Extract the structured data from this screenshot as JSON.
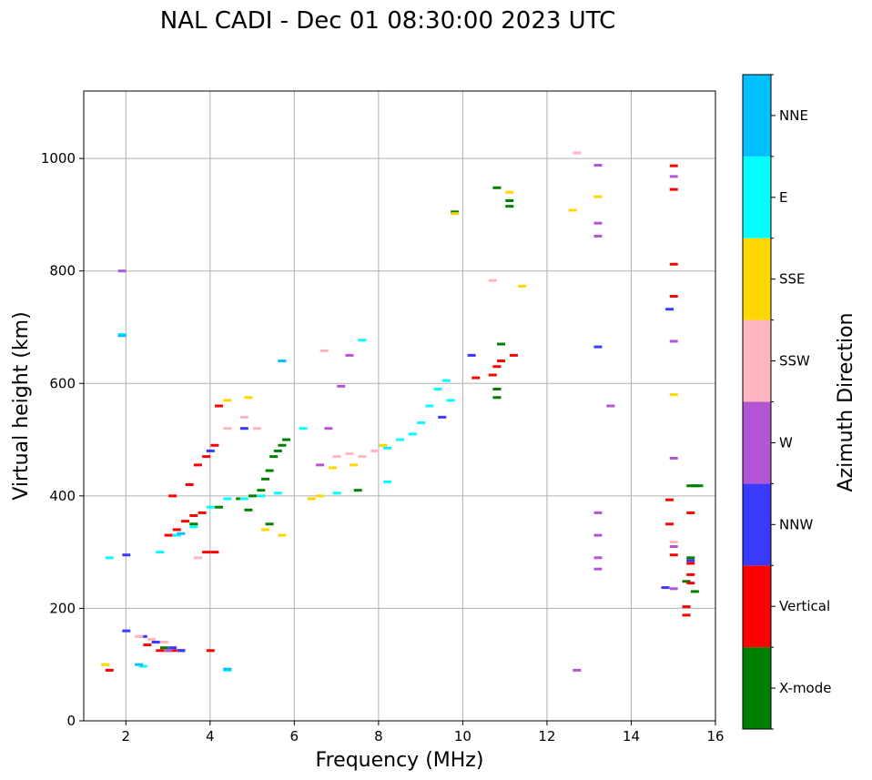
{
  "chart_data": {
    "type": "scatter",
    "title": "NAL CADI - Dec 01 08:30:00 2023 UTC",
    "xlabel": "Frequency (MHz)",
    "ylabel": "Virtual height (km)",
    "xlim": [
      1,
      16
    ],
    "ylim": [
      0,
      1120
    ],
    "xticks": [
      2,
      4,
      6,
      8,
      10,
      12,
      14,
      16
    ],
    "yticks": [
      0,
      200,
      400,
      600,
      800,
      1000
    ],
    "grid": true,
    "colorbar": {
      "label": "Azimuth Direction",
      "categories": [
        {
          "name": "X-mode",
          "color": "#008000"
        },
        {
          "name": "Vertical",
          "color": "#ff0000"
        },
        {
          "name": "NNW",
          "color": "#3a3aff"
        },
        {
          "name": "W",
          "color": "#b455d6"
        },
        {
          "name": "SSW",
          "color": "#ffb6c1"
        },
        {
          "name": "SSE",
          "color": "#ffd700"
        },
        {
          "name": "E",
          "color": "#00ffff"
        },
        {
          "name": "NNE",
          "color": "#00bfff"
        }
      ]
    },
    "series": [
      {
        "name": "X-mode",
        "points": [
          [
            2.9,
            130
          ],
          [
            3.6,
            350
          ],
          [
            4.2,
            380
          ],
          [
            4.7,
            395
          ],
          [
            4.9,
            375
          ],
          [
            5.0,
            400
          ],
          [
            5.2,
            410
          ],
          [
            5.3,
            430
          ],
          [
            5.4,
            445
          ],
          [
            5.5,
            470
          ],
          [
            5.6,
            480
          ],
          [
            5.7,
            490
          ],
          [
            5.8,
            500
          ],
          [
            5.4,
            350
          ],
          [
            7.5,
            410
          ],
          [
            9.8,
            905
          ],
          [
            10.8,
            590
          ],
          [
            10.8,
            575
          ],
          [
            10.9,
            670
          ],
          [
            11.1,
            925
          ],
          [
            11.1,
            915
          ],
          [
            15.4,
            418
          ],
          [
            15.5,
            418
          ],
          [
            15.6,
            418
          ],
          [
            15.3,
            248
          ],
          [
            15.5,
            230
          ],
          [
            15.4,
            290
          ],
          [
            10.8,
            948
          ]
        ]
      },
      {
        "name": "Vertical",
        "points": [
          [
            1.6,
            90
          ],
          [
            2.5,
            135
          ],
          [
            2.8,
            125
          ],
          [
            3.0,
            125
          ],
          [
            3.1,
            125
          ],
          [
            3.3,
            125
          ],
          [
            3.0,
            330
          ],
          [
            3.2,
            340
          ],
          [
            3.4,
            355
          ],
          [
            3.6,
            365
          ],
          [
            3.8,
            370
          ],
          [
            3.1,
            400
          ],
          [
            3.5,
            420
          ],
          [
            3.7,
            455
          ],
          [
            3.9,
            470
          ],
          [
            4.1,
            490
          ],
          [
            3.9,
            300
          ],
          [
            4.1,
            300
          ],
          [
            4.2,
            560
          ],
          [
            4.0,
            125
          ],
          [
            10.3,
            610
          ],
          [
            10.7,
            615
          ],
          [
            10.8,
            630
          ],
          [
            10.9,
            640
          ],
          [
            11.2,
            650
          ],
          [
            15.0,
            987
          ],
          [
            15.0,
            945
          ],
          [
            15.0,
            812
          ],
          [
            15.0,
            755
          ],
          [
            14.9,
            393
          ],
          [
            14.9,
            350
          ],
          [
            15.0,
            295
          ],
          [
            15.4,
            280
          ],
          [
            15.4,
            260
          ],
          [
            15.4,
            245
          ],
          [
            15.4,
            370
          ],
          [
            15.3,
            203
          ],
          [
            15.3,
            188
          ]
        ]
      },
      {
        "name": "NNW",
        "points": [
          [
            2.0,
            295
          ],
          [
            2.0,
            160
          ],
          [
            2.4,
            150
          ],
          [
            2.7,
            140
          ],
          [
            3.1,
            130
          ],
          [
            3.3,
            125
          ],
          [
            4.0,
            480
          ],
          [
            4.8,
            520
          ],
          [
            10.2,
            650
          ],
          [
            13.2,
            665
          ],
          [
            14.9,
            732
          ],
          [
            14.8,
            237
          ],
          [
            15.4,
            285
          ],
          [
            9.5,
            540
          ]
        ]
      },
      {
        "name": "W",
        "points": [
          [
            1.9,
            800
          ],
          [
            3.0,
            125
          ],
          [
            6.6,
            455
          ],
          [
            7.1,
            595
          ],
          [
            7.3,
            650
          ],
          [
            6.8,
            520
          ],
          [
            13.2,
            988
          ],
          [
            13.2,
            885
          ],
          [
            13.2,
            862
          ],
          [
            13.5,
            560
          ],
          [
            13.2,
            370
          ],
          [
            13.2,
            330
          ],
          [
            13.2,
            290
          ],
          [
            13.2,
            270
          ],
          [
            12.7,
            90
          ],
          [
            15.0,
            968
          ],
          [
            15.0,
            675
          ],
          [
            15.0,
            467
          ],
          [
            15.0,
            310
          ],
          [
            15.0,
            235
          ]
        ]
      },
      {
        "name": "SSW",
        "points": [
          [
            2.3,
            150
          ],
          [
            2.6,
            145
          ],
          [
            2.9,
            140
          ],
          [
            4.4,
            520
          ],
          [
            4.8,
            540
          ],
          [
            5.1,
            520
          ],
          [
            6.7,
            658
          ],
          [
            7.0,
            470
          ],
          [
            7.3,
            475
          ],
          [
            7.6,
            470
          ],
          [
            7.9,
            480
          ],
          [
            10.7,
            783
          ],
          [
            12.7,
            1010
          ],
          [
            15.0,
            318
          ],
          [
            3.7,
            290
          ]
        ]
      },
      {
        "name": "SSE",
        "points": [
          [
            1.5,
            100
          ],
          [
            4.4,
            570
          ],
          [
            4.9,
            575
          ],
          [
            5.3,
            340
          ],
          [
            5.7,
            330
          ],
          [
            6.4,
            395
          ],
          [
            6.6,
            400
          ],
          [
            6.9,
            450
          ],
          [
            7.4,
            455
          ],
          [
            8.1,
            490
          ],
          [
            9.8,
            902
          ],
          [
            11.1,
            940
          ],
          [
            11.4,
            773
          ],
          [
            12.6,
            908
          ],
          [
            13.2,
            932
          ],
          [
            15.0,
            580
          ]
        ]
      },
      {
        "name": "E",
        "points": [
          [
            1.9,
            687
          ],
          [
            1.6,
            290
          ],
          [
            2.4,
            97
          ],
          [
            4.4,
            90
          ],
          [
            2.8,
            300
          ],
          [
            3.2,
            330
          ],
          [
            3.6,
            345
          ],
          [
            4.0,
            380
          ],
          [
            4.4,
            395
          ],
          [
            4.8,
            395
          ],
          [
            5.2,
            400
          ],
          [
            5.6,
            405
          ],
          [
            6.2,
            520
          ],
          [
            7.0,
            405
          ],
          [
            7.6,
            677
          ],
          [
            8.2,
            485
          ],
          [
            8.5,
            500
          ],
          [
            8.8,
            510
          ],
          [
            9.0,
            530
          ],
          [
            9.2,
            560
          ],
          [
            9.4,
            590
          ],
          [
            9.6,
            605
          ],
          [
            9.7,
            570
          ],
          [
            8.2,
            425
          ]
        ]
      },
      {
        "name": "NNE",
        "points": [
          [
            1.9,
            685
          ],
          [
            2.3,
            100
          ],
          [
            4.4,
            92
          ],
          [
            5.7,
            640
          ],
          [
            3.3,
            333
          ]
        ]
      }
    ]
  }
}
